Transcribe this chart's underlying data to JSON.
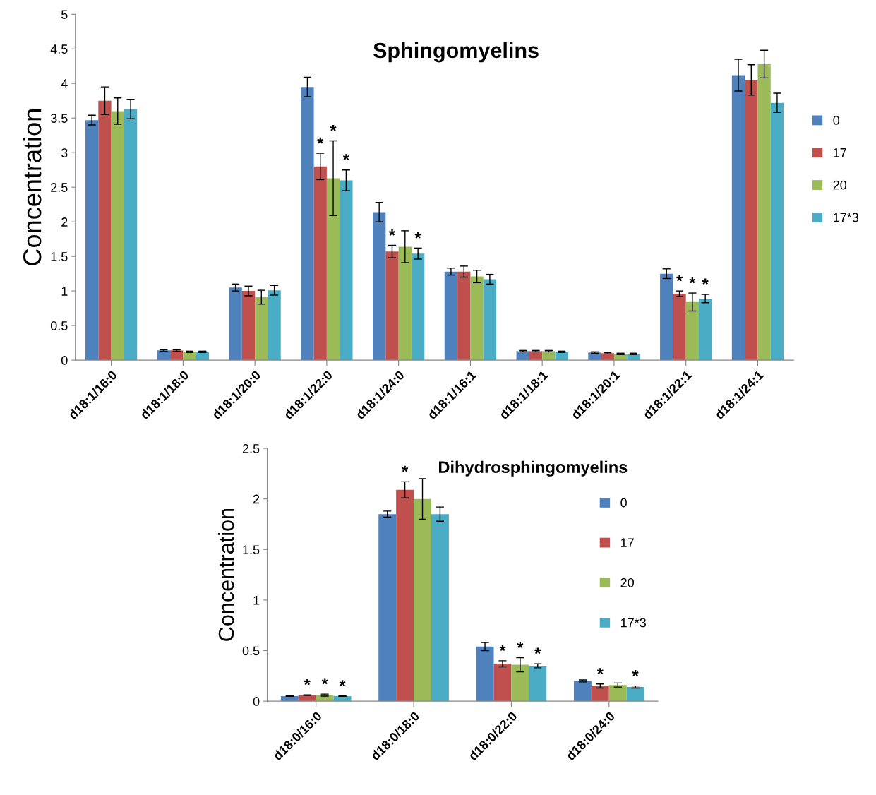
{
  "chart_data": [
    {
      "type": "bar",
      "title": "Sphingomyelins",
      "ylabel": "Concentration",
      "categories": [
        "d18:1/16:0",
        "d18:1/18:0",
        "d18:1/20:0",
        "d18:1/22:0",
        "d18:1/24:0",
        "d18:1/16:1",
        "d18:1/18:1",
        "d18:1/20:1",
        "d18:1/22:1",
        "d18:1/24:1"
      ],
      "series": [
        {
          "name": "0",
          "color": "#4f81bd",
          "values": [
            3.47,
            0.14,
            1.05,
            3.95,
            2.14,
            1.28,
            0.13,
            0.11,
            1.25,
            4.12
          ],
          "errors": [
            0.07,
            0.01,
            0.05,
            0.14,
            0.14,
            0.05,
            0.01,
            0.01,
            0.07,
            0.23
          ]
        },
        {
          "name": "17",
          "color": "#c0504d",
          "values": [
            3.75,
            0.14,
            1.0,
            2.8,
            1.57,
            1.28,
            0.13,
            0.1,
            0.96,
            4.05
          ],
          "errors": [
            0.2,
            0.01,
            0.07,
            0.19,
            0.09,
            0.08,
            0.01,
            0.01,
            0.04,
            0.22
          ]
        },
        {
          "name": "20",
          "color": "#9bbb59",
          "values": [
            3.6,
            0.12,
            0.91,
            2.63,
            1.64,
            1.21,
            0.13,
            0.09,
            0.84,
            4.28
          ],
          "errors": [
            0.19,
            0.01,
            0.1,
            0.54,
            0.23,
            0.09,
            0.01,
            0.01,
            0.13,
            0.2
          ]
        },
        {
          "name": "17*3",
          "color": "#4bacc6",
          "values": [
            3.63,
            0.12,
            1.01,
            2.6,
            1.54,
            1.17,
            0.12,
            0.09,
            0.89,
            3.72
          ],
          "errors": [
            0.14,
            0.01,
            0.07,
            0.15,
            0.08,
            0.07,
            0.01,
            0.01,
            0.06,
            0.14
          ]
        }
      ],
      "annotations": [
        {
          "text": "*",
          "x": "d18:1/22:0",
          "y": 2.8
        },
        {
          "text": "*",
          "x": "d18:1/22:0",
          "y": 2.63
        },
        {
          "text": "*",
          "x": "d18:1/22:0",
          "y": 2.6
        },
        {
          "text": "*",
          "x": "d18:1/24:0",
          "y": 1.57
        },
        {
          "text": "*",
          "x": "d18:1/24:0",
          "y": 1.54
        },
        {
          "text": "*",
          "x": "d18:1/22:1",
          "y": 0.96
        },
        {
          "text": "*",
          "x": "d18:1/22:1",
          "y": 0.84
        },
        {
          "text": "*",
          "x": "d18:1/22:1",
          "y": 0.89
        }
      ],
      "ylim": [
        0,
        5
      ],
      "yticks": [
        0,
        0.5,
        1,
        1.5,
        2,
        2.5,
        3,
        3.5,
        4,
        4.5,
        5
      ],
      "legend": "right"
    },
    {
      "type": "bar",
      "title": "Dihydrosphingomyelins",
      "ylabel": "Concentration",
      "categories": [
        "d18:0/16:0",
        "d18:0/18:0",
        "d18:0/22:0",
        "d18:0/24:0"
      ],
      "series": [
        {
          "name": "0",
          "color": "#4f81bd",
          "values": [
            0.05,
            1.85,
            0.54,
            0.2
          ],
          "errors": [
            0.002,
            0.03,
            0.04,
            0.01
          ]
        },
        {
          "name": "17",
          "color": "#c0504d",
          "values": [
            0.06,
            2.09,
            0.37,
            0.15
          ],
          "errors": [
            0.003,
            0.08,
            0.03,
            0.02
          ]
        },
        {
          "name": "20",
          "color": "#9bbb59",
          "values": [
            0.06,
            2.0,
            0.36,
            0.16
          ],
          "errors": [
            0.01,
            0.2,
            0.07,
            0.02
          ]
        },
        {
          "name": "17*3",
          "color": "#4bacc6",
          "values": [
            0.05,
            1.85,
            0.35,
            0.14
          ],
          "errors": [
            0.002,
            0.07,
            0.02,
            0.01
          ]
        }
      ],
      "annotations": [
        {
          "text": "*",
          "x": "d18:0/16:0",
          "y": 0.06
        },
        {
          "text": "*",
          "x": "d18:0/16:0",
          "y": 0.06
        },
        {
          "text": "*",
          "x": "d18:0/16:0",
          "y": 0.05
        },
        {
          "text": "*",
          "x": "d18:0/18:0",
          "y": 2.09
        },
        {
          "text": "*",
          "x": "d18:0/22:0",
          "y": 0.37
        },
        {
          "text": "*",
          "x": "d18:0/22:0",
          "y": 0.36
        },
        {
          "text": "*",
          "x": "d18:0/22:0",
          "y": 0.35
        },
        {
          "text": "*",
          "x": "d18:0/24:0",
          "y": 0.15
        },
        {
          "text": "*",
          "x": "d18:0/24:0",
          "y": 0.14
        }
      ],
      "ylim": [
        0,
        2.5
      ],
      "yticks": [
        0,
        0.5,
        1,
        1.5,
        2,
        2.5
      ],
      "legend": "top right"
    }
  ]
}
